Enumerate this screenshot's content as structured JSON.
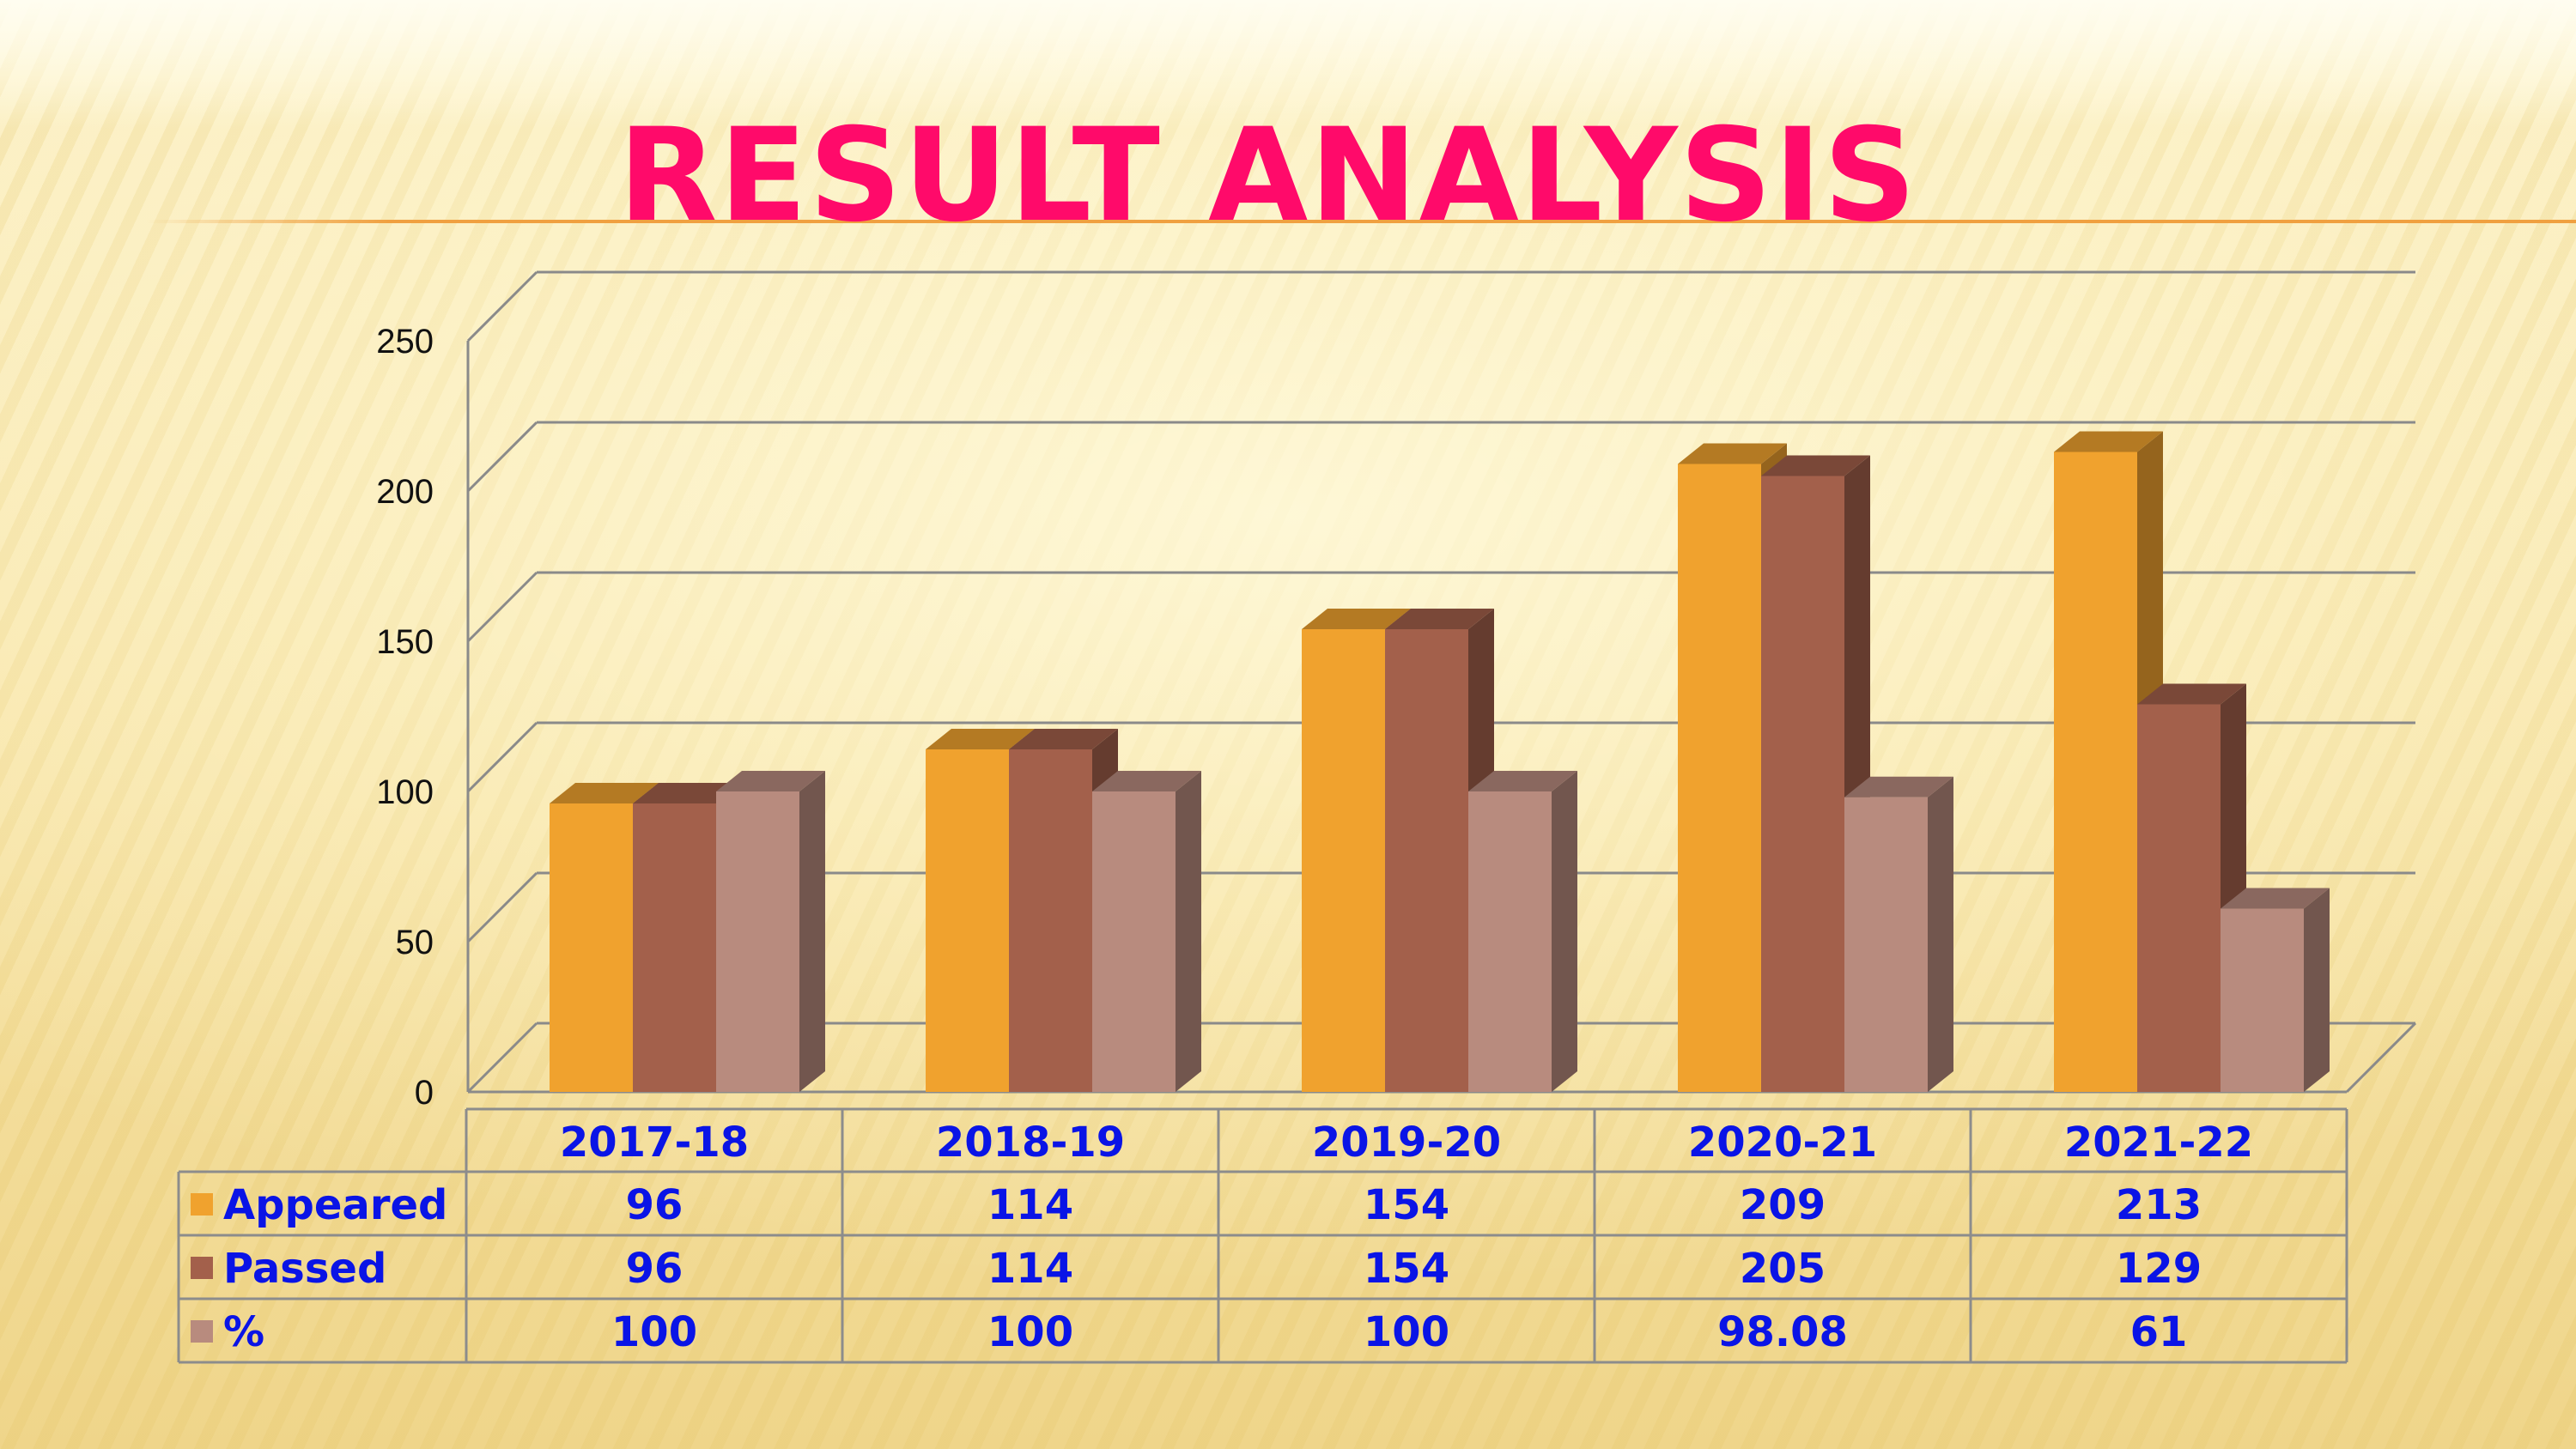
{
  "title": "RESULT ANALYSIS",
  "chart_data": {
    "type": "bar",
    "categories": [
      "2017-18",
      "2018-19",
      "2019-20",
      "2020-21",
      "2021-22"
    ],
    "series": [
      {
        "name": "Appeared",
        "values": [
          96,
          114,
          154,
          209,
          213
        ],
        "labels": [
          "96",
          "114",
          "154",
          "209",
          "213"
        ],
        "color": "#f0a22e"
      },
      {
        "name": "Passed",
        "values": [
          96,
          114,
          154,
          205,
          129
        ],
        "labels": [
          "96",
          "114",
          "154",
          "205",
          "129"
        ],
        "color": "#a3604b"
      },
      {
        "name": "%",
        "values": [
          100,
          100,
          100,
          98.08,
          61
        ],
        "labels": [
          "100",
          "100",
          "100",
          "98.08",
          "61"
        ],
        "color": "#b88b7e"
      }
    ],
    "ylim": [
      0,
      250
    ],
    "yticks": [
      0,
      50,
      100,
      150,
      200,
      250
    ],
    "grid": true,
    "data_table": true
  }
}
